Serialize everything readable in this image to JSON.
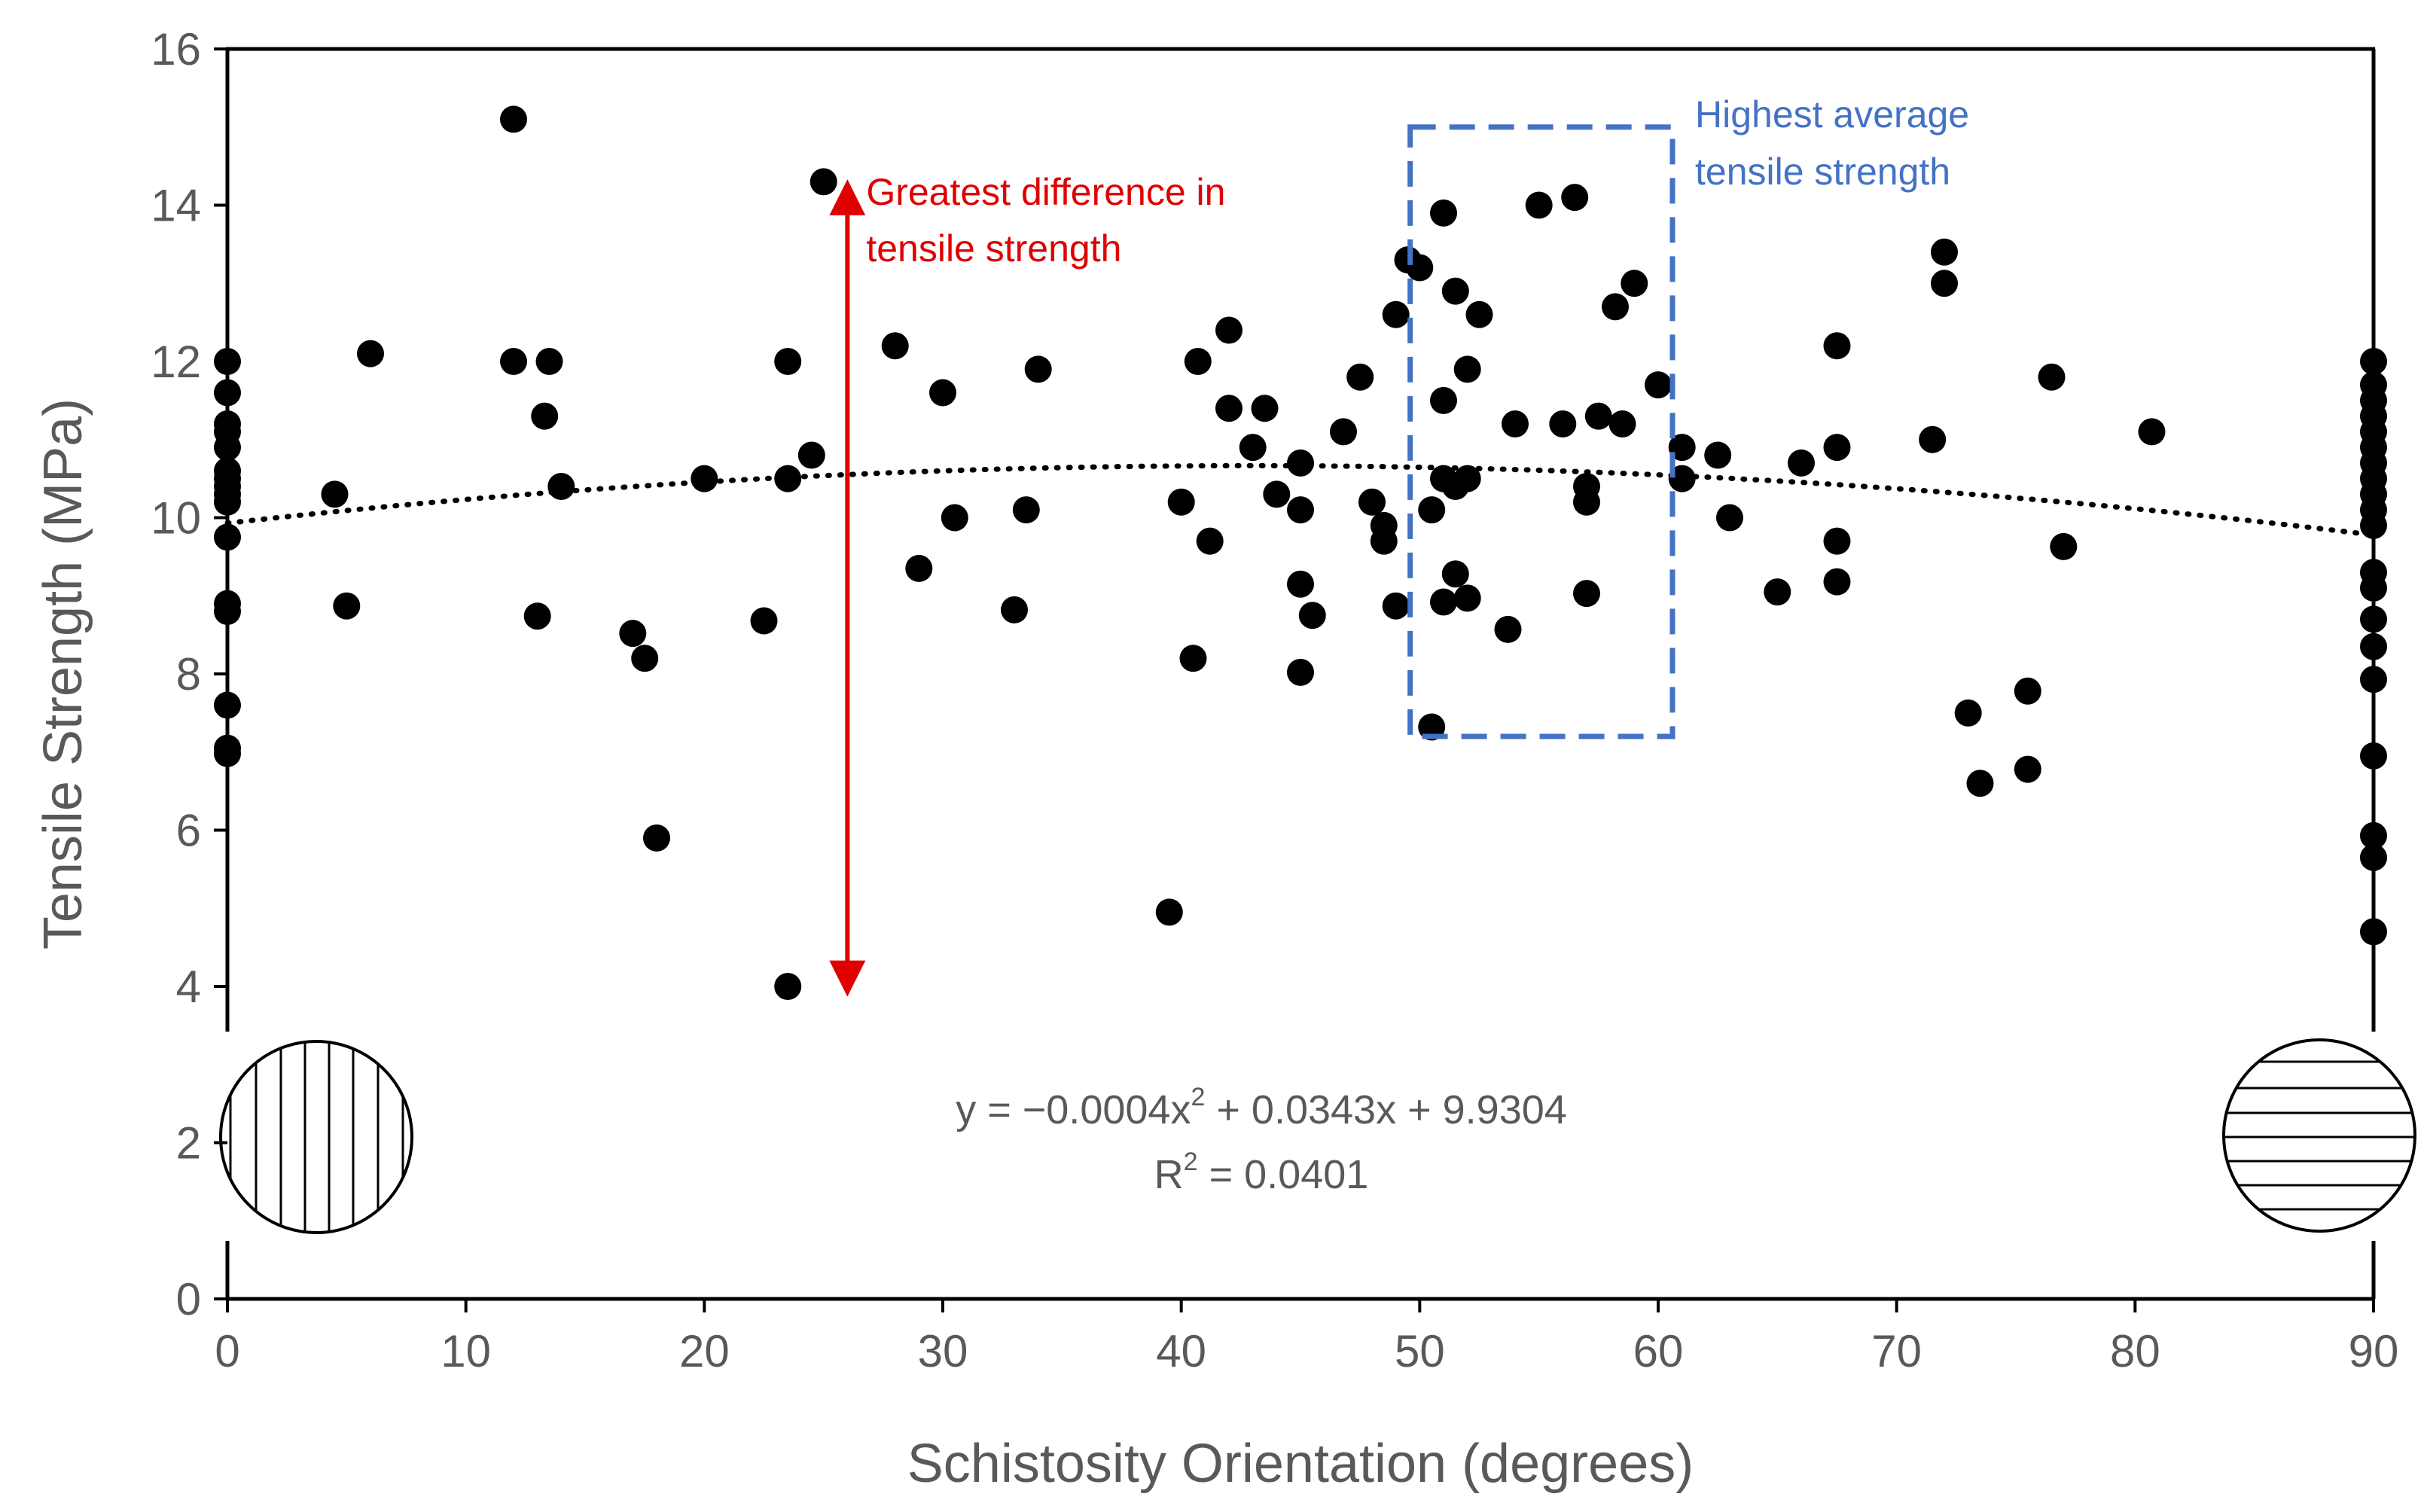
{
  "chart_data": {
    "type": "scatter",
    "xlabel": "Schistosity Orientation (degrees)",
    "ylabel": "Tensile Strength (MPa)",
    "xlim": [
      0,
      90
    ],
    "ylim": [
      0,
      16
    ],
    "x_ticks": [
      "0",
      "10",
      "20",
      "30",
      "40",
      "50",
      "60",
      "70",
      "80",
      "90"
    ],
    "y_ticks": [
      "0",
      "2",
      "4",
      "6",
      "8",
      "10",
      "12",
      "14",
      "16"
    ],
    "grid": false,
    "colors": {
      "points": "#000000",
      "trendline": "#000000",
      "arrow": "#e00000",
      "box": "#4472c4",
      "text": "#595959"
    },
    "points": [
      [
        0,
        12.0
      ],
      [
        0,
        11.6
      ],
      [
        0,
        11.2
      ],
      [
        0,
        11.1
      ],
      [
        0,
        10.9
      ],
      [
        0,
        10.6
      ],
      [
        0,
        10.5
      ],
      [
        0,
        10.4
      ],
      [
        0,
        10.3
      ],
      [
        0,
        10.2
      ],
      [
        0,
        9.75
      ],
      [
        0,
        8.9
      ],
      [
        0,
        8.8
      ],
      [
        0,
        7.6
      ],
      [
        0,
        7.05
      ],
      [
        0,
        6.98
      ],
      [
        4.5,
        10.3
      ],
      [
        5.0,
        8.87
      ],
      [
        6.0,
        12.1
      ],
      [
        12.0,
        15.1
      ],
      [
        12.0,
        12.0
      ],
      [
        13.0,
        8.74
      ],
      [
        13.3,
        11.3
      ],
      [
        13.5,
        12.0
      ],
      [
        14.0,
        10.4
      ],
      [
        17.0,
        8.52
      ],
      [
        17.5,
        8.2
      ],
      [
        18.0,
        5.9
      ],
      [
        20.0,
        10.5
      ],
      [
        22.5,
        8.68
      ],
      [
        23.5,
        12.0
      ],
      [
        23.5,
        10.5
      ],
      [
        23.5,
        4.0
      ],
      [
        24.5,
        10.8
      ],
      [
        25.0,
        14.3
      ],
      [
        28.0,
        12.2
      ],
      [
        29.0,
        9.35
      ],
      [
        30.0,
        11.6
      ],
      [
        30.5,
        10.0
      ],
      [
        33.0,
        8.82
      ],
      [
        33.5,
        10.1
      ],
      [
        34.0,
        11.9
      ],
      [
        39.5,
        4.95
      ],
      [
        40.0,
        10.2
      ],
      [
        40.5,
        8.2
      ],
      [
        40.7,
        12.0
      ],
      [
        41.2,
        9.7
      ],
      [
        42.0,
        12.4
      ],
      [
        42.0,
        11.4
      ],
      [
        43.0,
        10.9
      ],
      [
        43.5,
        11.4
      ],
      [
        44.0,
        10.3
      ],
      [
        45.0,
        10.7
      ],
      [
        45.0,
        10.1
      ],
      [
        45.0,
        9.15
      ],
      [
        45.0,
        8.02
      ],
      [
        45.5,
        8.75
      ],
      [
        46.8,
        11.1
      ],
      [
        47.5,
        11.8
      ],
      [
        48.0,
        10.2
      ],
      [
        48.5,
        9.9
      ],
      [
        48.5,
        9.7
      ],
      [
        49.0,
        12.6
      ],
      [
        49.0,
        8.87
      ],
      [
        49.5,
        13.3
      ],
      [
        50.0,
        13.2
      ],
      [
        50.5,
        10.1
      ],
      [
        50.5,
        7.32
      ],
      [
        51.0,
        13.9
      ],
      [
        51.0,
        11.5
      ],
      [
        51.0,
        10.5
      ],
      [
        51.0,
        8.92
      ],
      [
        51.5,
        12.9
      ],
      [
        51.5,
        10.4
      ],
      [
        51.5,
        9.28
      ],
      [
        52.0,
        11.9
      ],
      [
        52.0,
        10.5
      ],
      [
        52.0,
        8.97
      ],
      [
        52.5,
        12.6
      ],
      [
        53.7,
        8.57
      ],
      [
        54.0,
        11.2
      ],
      [
        55.0,
        14.0
      ],
      [
        56.0,
        11.2
      ],
      [
        56.5,
        14.1
      ],
      [
        57.0,
        10.4
      ],
      [
        57.0,
        10.2
      ],
      [
        57.0,
        9.03
      ],
      [
        57.5,
        11.3
      ],
      [
        58.2,
        12.7
      ],
      [
        58.5,
        11.2
      ],
      [
        59.0,
        13.0
      ],
      [
        60.0,
        11.7
      ],
      [
        61.0,
        10.9
      ],
      [
        61.0,
        10.5
      ],
      [
        62.5,
        10.8
      ],
      [
        63.0,
        10.0
      ],
      [
        65.0,
        9.05
      ],
      [
        66.0,
        10.7
      ],
      [
        67.5,
        12.2
      ],
      [
        67.5,
        10.9
      ],
      [
        67.5,
        9.7
      ],
      [
        67.5,
        9.18
      ],
      [
        71.5,
        11.0
      ],
      [
        72.0,
        13.4
      ],
      [
        72.0,
        13.0
      ],
      [
        73.0,
        7.5
      ],
      [
        73.5,
        6.6
      ],
      [
        75.5,
        7.78
      ],
      [
        75.5,
        6.78
      ],
      [
        76.5,
        11.8
      ],
      [
        77.0,
        9.63
      ],
      [
        80.7,
        11.1
      ],
      [
        90,
        12.0
      ],
      [
        90,
        11.7
      ],
      [
        90,
        11.5
      ],
      [
        90,
        11.3
      ],
      [
        90,
        11.1
      ],
      [
        90,
        10.9
      ],
      [
        90,
        10.7
      ],
      [
        90,
        10.5
      ],
      [
        90,
        10.3
      ],
      [
        90,
        10.1
      ],
      [
        90,
        9.9
      ],
      [
        90,
        9.3
      ],
      [
        90,
        9.1
      ],
      [
        90,
        8.7
      ],
      [
        90,
        8.35
      ],
      [
        90,
        7.93
      ],
      [
        90,
        6.95
      ],
      [
        90,
        5.93
      ],
      [
        90,
        5.65
      ],
      [
        90,
        4.7
      ]
    ],
    "trendline": {
      "type": "polynomial",
      "a": -0.0004,
      "b": 0.0343,
      "c": 9.9304,
      "equation_prefix": "y = −0.0004x",
      "equation_exp": "2",
      "equation_suffix": " + 0.0343x + 9.9304",
      "r2_prefix": "R",
      "r2_exp": "2",
      "r2_suffix": " = 0.0401"
    },
    "annotations": {
      "arrow": {
        "x": 26,
        "y_from": 4.1,
        "y_to": 14.1,
        "label_line1": "Greatest difference in",
        "label_line2": "tensile strength"
      },
      "box": {
        "x_from": 49.6,
        "x_to": 60.6,
        "y_from": 7.2,
        "y_to": 15.0,
        "label_line1": "Highest average",
        "label_line2": "tensile strength"
      }
    }
  }
}
